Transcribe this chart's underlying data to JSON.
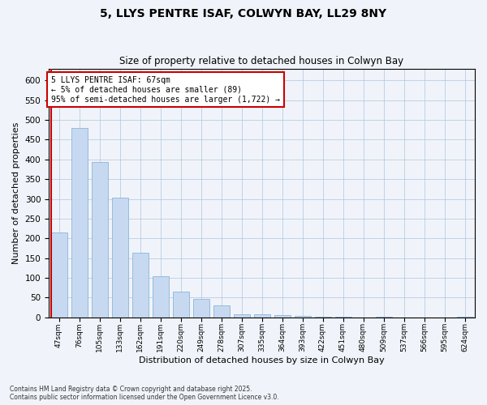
{
  "title1": "5, LLYS PENTRE ISAF, COLWYN BAY, LL29 8NY",
  "title2": "Size of property relative to detached houses in Colwyn Bay",
  "xlabel": "Distribution of detached houses by size in Colwyn Bay",
  "ylabel": "Number of detached properties",
  "footnote1": "Contains HM Land Registry data © Crown copyright and database right 2025.",
  "footnote2": "Contains public sector information licensed under the Open Government Licence v3.0.",
  "categories": [
    "47sqm",
    "76sqm",
    "105sqm",
    "133sqm",
    "162sqm",
    "191sqm",
    "220sqm",
    "249sqm",
    "278sqm",
    "307sqm",
    "335sqm",
    "364sqm",
    "393sqm",
    "422sqm",
    "451sqm",
    "480sqm",
    "509sqm",
    "537sqm",
    "566sqm",
    "595sqm",
    "624sqm"
  ],
  "values": [
    215,
    480,
    393,
    303,
    163,
    105,
    65,
    47,
    30,
    8,
    8,
    5,
    3,
    2,
    1,
    0,
    1,
    0,
    0,
    0,
    2
  ],
  "bar_color": "#c6d9f0",
  "bar_edge_color": "#8db4d9",
  "highlight_color": "#cc0000",
  "annotation_line1": "5 LLYS PENTRE ISAF: 67sqm",
  "annotation_line2": "← 5% of detached houses are smaller (89)",
  "annotation_line3": "95% of semi-detached houses are larger (1,722) →",
  "ylim": [
    0,
    630
  ],
  "yticks": [
    0,
    50,
    100,
    150,
    200,
    250,
    300,
    350,
    400,
    450,
    500,
    550,
    600
  ],
  "red_line_x": -0.4,
  "fig_width": 6.0,
  "fig_height": 5.0,
  "background_color": "#f0f4fa"
}
